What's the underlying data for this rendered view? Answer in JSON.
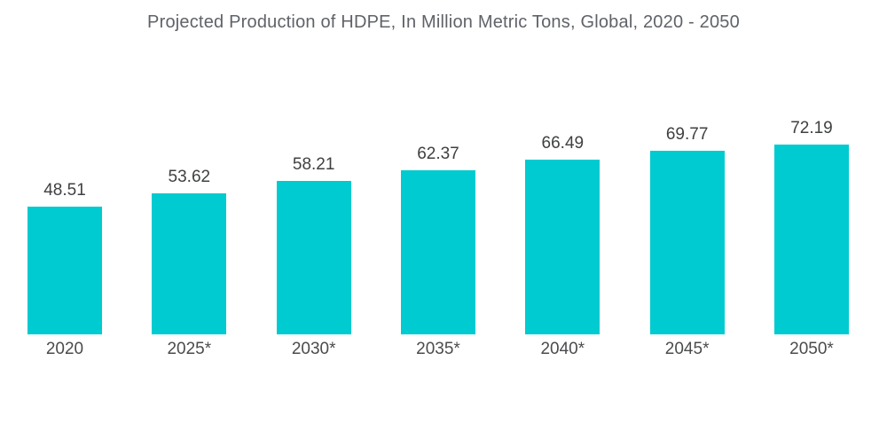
{
  "chart_data": {
    "type": "bar",
    "title": "Projected Production of HDPE, In Million Metric Tons, Global, 2020 - 2050",
    "categories": [
      "2020",
      "2025*",
      "2030*",
      "2035*",
      "2040*",
      "2045*",
      "2050*"
    ],
    "values": [
      48.51,
      53.62,
      58.21,
      62.37,
      66.49,
      69.77,
      72.19
    ],
    "value_labels": [
      "48.51",
      "53.62",
      "58.21",
      "62.37",
      "66.49",
      "69.77",
      "72.19"
    ],
    "xlabel": "",
    "ylabel": "",
    "ylim": [
      0,
      80
    ],
    "grid": false,
    "legend": "none",
    "axes_visible": false,
    "bar_color": "#00CBD0",
    "title_color": "#5F6368",
    "value_label_color": "#3F4041",
    "category_label_color": "#4A4B4D",
    "background_color": "#FFFFFF"
  }
}
